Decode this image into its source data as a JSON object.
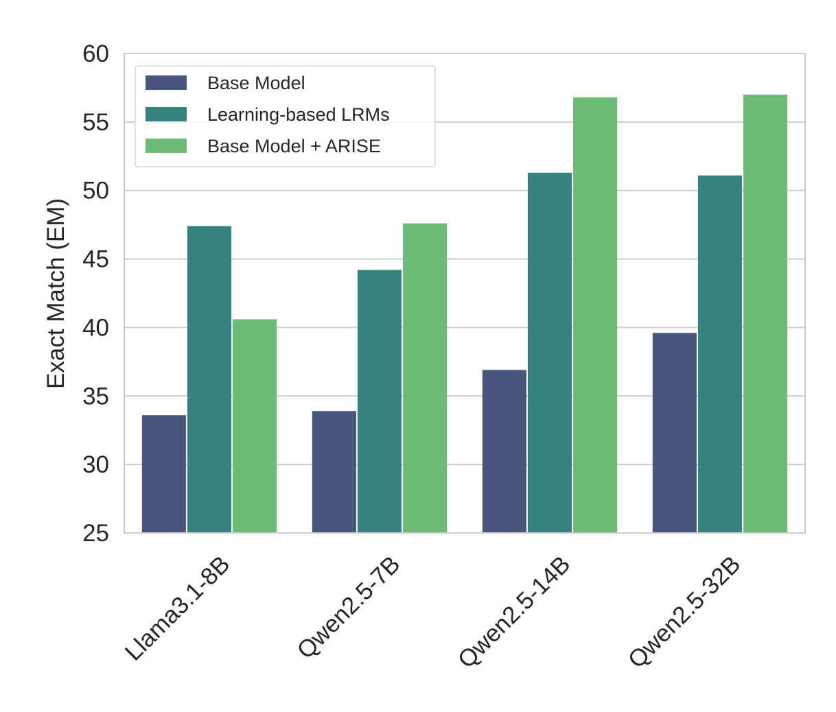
{
  "chart_data": {
    "type": "bar",
    "title": "",
    "xlabel": "",
    "ylabel": "Exact Match (EM)",
    "ylim": [
      25,
      60
    ],
    "yticks": [
      25,
      30,
      35,
      40,
      45,
      50,
      55,
      60
    ],
    "categories": [
      "Llama3.1-8B",
      "Qwen2.5-7B",
      "Qwen2.5-14B",
      "Qwen2.5-32B"
    ],
    "series": [
      {
        "name": "Base Model",
        "color": "#48567e",
        "values": [
          33.6,
          33.9,
          36.9,
          39.6
        ]
      },
      {
        "name": "Learning-based LRMs",
        "color": "#34837e",
        "values": [
          47.4,
          44.2,
          51.3,
          51.1
        ]
      },
      {
        "name": "Base Model + ARISE",
        "color": "#6dbb74",
        "values": [
          40.6,
          47.6,
          56.8,
          57.0
        ]
      }
    ],
    "grid": "horizontal",
    "legend_position": "top-left",
    "x_tick_rotation": "45 degrees"
  }
}
